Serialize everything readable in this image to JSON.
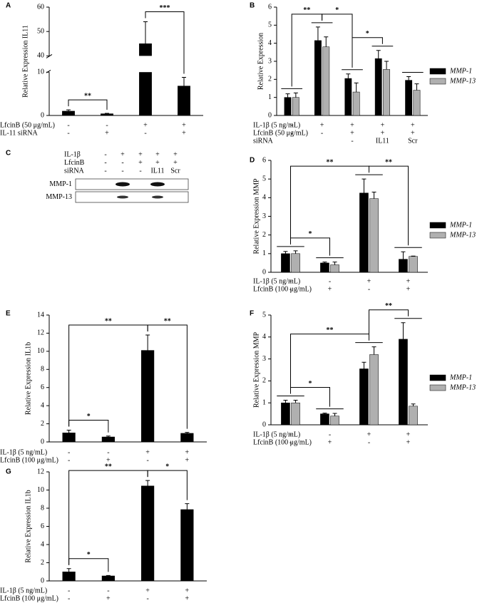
{
  "chart_data": [
    {
      "type": "bar",
      "label": "A",
      "ylabel": "Relative Expression IL11",
      "ylim": [
        0,
        60
      ],
      "axis_break": [
        10,
        40
      ],
      "yticks": [
        0,
        10,
        40,
        50,
        60
      ],
      "color": "#000000",
      "values": [
        1.0,
        0.4,
        45,
        6.8
      ],
      "errors": [
        0.3,
        0.1,
        9,
        2
      ],
      "conditions": [
        {
          "label": "LfcinB (50 μg/mL)",
          "values": [
            "-",
            "-",
            "+",
            "+"
          ]
        },
        {
          "label": "IL-11 siRNA",
          "values": [
            "-",
            "+",
            "-",
            "+"
          ]
        }
      ],
      "significance": [
        {
          "from": 0,
          "to": 1,
          "label": "**"
        },
        {
          "from": 2,
          "to": 3,
          "label": "***"
        }
      ]
    },
    {
      "type": "bar",
      "label": "B",
      "ylabel": "Relative Expression",
      "ylim": [
        0,
        6
      ],
      "yticks": [
        0,
        1,
        2,
        3,
        4,
        5,
        6
      ],
      "legend": "right",
      "series": [
        {
          "name": "MMP-1",
          "color": "#000000",
          "values": [
            1.0,
            4.15,
            2.05,
            3.15,
            1.95
          ],
          "errors": [
            0.2,
            0.75,
            0.25,
            0.45,
            0.2
          ]
        },
        {
          "name": "MMP-13",
          "color": "#b0b0b0",
          "values": [
            1.0,
            3.8,
            1.3,
            2.55,
            1.4
          ],
          "errors": [
            0.25,
            0.55,
            0.5,
            0.45,
            0.35
          ]
        }
      ],
      "conditions": [
        {
          "label": "IL-1β (5 ng/mL)",
          "values": [
            "-",
            "+",
            "+",
            "+",
            "+"
          ]
        },
        {
          "label": "LfcinB (50 μg/mL)",
          "values": [
            "-",
            "-",
            "+",
            "+",
            "+"
          ]
        },
        {
          "label": "siRNA",
          "values": [
            null,
            null,
            "-",
            "IL11",
            "Scr"
          ]
        }
      ],
      "significance": [
        {
          "from": 0,
          "to": 1,
          "label": "**"
        },
        {
          "from": 1,
          "to": 2,
          "label": "*"
        },
        {
          "from": 2,
          "to": 3,
          "label": "*"
        }
      ]
    },
    {
      "type": "bar",
      "label": "D",
      "ylabel": "Relative Expression MMP",
      "ylim": [
        0,
        6
      ],
      "yticks": [
        0,
        1,
        2,
        3,
        4,
        5,
        6
      ],
      "legend": "right",
      "series": [
        {
          "name": "MMP-1",
          "color": "#000000",
          "values": [
            1.0,
            0.5,
            4.25,
            0.7
          ],
          "errors": [
            0.12,
            0.05,
            0.75,
            0.4
          ]
        },
        {
          "name": "MMP-13",
          "color": "#b0b0b0",
          "values": [
            1.0,
            0.4,
            3.95,
            0.85
          ],
          "errors": [
            0.15,
            0.15,
            0.35,
            0.02
          ]
        }
      ],
      "conditions": [
        {
          "label": "IL-1β (5 ng/mL)",
          "values": [
            "-",
            "-",
            "+",
            "+"
          ]
        },
        {
          "label": "LfcinB (100 μg/mL)",
          "values": [
            "-",
            "+",
            "-",
            "+"
          ]
        }
      ],
      "significance": [
        {
          "from": 0,
          "to": 1,
          "label": "*"
        },
        {
          "from": 0,
          "to": 2,
          "label": "**"
        },
        {
          "from": 2,
          "to": 3,
          "label": "**"
        }
      ]
    },
    {
      "type": "bar",
      "label": "E",
      "ylabel": "Relative Expression IL1b",
      "ylim": [
        0,
        14
      ],
      "yticks": [
        0,
        2,
        4,
        6,
        8,
        10,
        12,
        14
      ],
      "color": "#000000",
      "values": [
        1.0,
        0.55,
        10.1,
        0.95
      ],
      "errors": [
        0.3,
        0.1,
        1.7,
        0.1
      ],
      "conditions": [
        {
          "label": "IL-1β (5 ng/mL)",
          "values": [
            "-",
            "-",
            "+",
            "+"
          ]
        },
        {
          "label": "LfcinB (100 μg/mL)",
          "values": [
            "-",
            "+",
            "-",
            "+"
          ]
        }
      ],
      "significance": [
        {
          "from": 0,
          "to": 1,
          "label": "*"
        },
        {
          "from": 0,
          "to": 2,
          "label": "**"
        },
        {
          "from": 2,
          "to": 3,
          "label": "**"
        }
      ]
    },
    {
      "type": "bar",
      "label": "F",
      "ylabel": "Relative Expression MMP",
      "ylim": [
        0,
        5
      ],
      "yticks": [
        0,
        1,
        2,
        3,
        4,
        5
      ],
      "legend": "right",
      "series": [
        {
          "name": "MMP-1",
          "color": "#000000",
          "values": [
            1.0,
            0.5,
            2.55,
            3.9
          ],
          "errors": [
            0.12,
            0.03,
            0.3,
            0.75
          ]
        },
        {
          "name": "MMP-13",
          "color": "#b0b0b0",
          "values": [
            1.0,
            0.4,
            3.2,
            0.85
          ],
          "errors": [
            0.12,
            0.12,
            0.35,
            0.1
          ]
        }
      ],
      "conditions": [
        {
          "label": "IL-1β (5 ng/mL)",
          "values": [
            "-",
            "-",
            "+",
            "+"
          ]
        },
        {
          "label": "LfcinB (100 μg/mL)",
          "values": [
            "-",
            "+",
            "-",
            "+"
          ]
        }
      ],
      "significance": [
        {
          "from": 0,
          "to": 1,
          "label": "*"
        },
        {
          "from": 0,
          "to": 2,
          "label": "**"
        },
        {
          "from": 2,
          "to": 3,
          "label": "**"
        }
      ]
    },
    {
      "type": "bar",
      "label": "G",
      "ylabel": "Relative Expression IL1b",
      "ylim": [
        0,
        12
      ],
      "yticks": [
        0,
        2,
        4,
        6,
        8,
        10,
        12
      ],
      "color": "#000000",
      "values": [
        1.0,
        0.55,
        10.45,
        7.85
      ],
      "errors": [
        0.35,
        0.05,
        0.6,
        0.65
      ],
      "conditions": [
        {
          "label": "IL-1β (5 ng/mL)",
          "values": [
            "-",
            "-",
            "+",
            "+"
          ]
        },
        {
          "label": "LfcinB (100 μg/mL)",
          "values": [
            "-",
            "+",
            "-",
            "+"
          ]
        }
      ],
      "significance": [
        {
          "from": 0,
          "to": 1,
          "label": "*"
        },
        {
          "from": 0,
          "to": 2,
          "label": "**"
        },
        {
          "from": 2,
          "to": 3,
          "label": "*"
        }
      ]
    }
  ],
  "blot": {
    "label": "C",
    "conditions": [
      {
        "label": "IL-1β",
        "values": [
          "-",
          "+",
          "+",
          "+",
          "+"
        ]
      },
      {
        "label": "LfcinB",
        "values": [
          "-",
          "-",
          "+",
          "+",
          "+"
        ]
      },
      {
        "label": "siRNA",
        "values": [
          "-",
          "-",
          "-",
          "IL11",
          "Scr"
        ]
      }
    ],
    "bands": [
      "MMP-1",
      "MMP-13"
    ]
  }
}
